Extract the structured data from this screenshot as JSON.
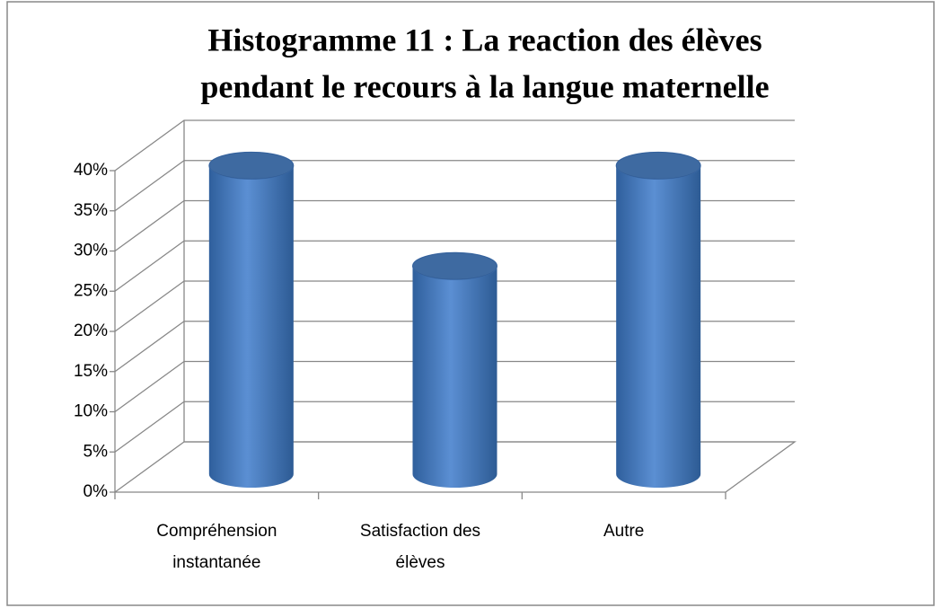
{
  "chart_data": {
    "type": "bar",
    "title": [
      "Histogramme 11 : La reaction des élèves",
      "pendant le recours à la langue maternelle"
    ],
    "categories": [
      [
        "Compréhension",
        "instantanée"
      ],
      [
        "Satisfaction des",
        "élèves"
      ],
      [
        "Autre"
      ]
    ],
    "values": [
      37.5,
      25,
      37.5
    ],
    "color": "#4f81bd",
    "ylim": [
      0,
      40
    ],
    "yticks": [
      {
        "value": 0,
        "label": "0%"
      },
      {
        "value": 5,
        "label": "5%"
      },
      {
        "value": 10,
        "label": "10%"
      },
      {
        "value": 15,
        "label": "15%"
      },
      {
        "value": 20,
        "label": "20%"
      },
      {
        "value": 25,
        "label": "25%"
      },
      {
        "value": 30,
        "label": "30%"
      },
      {
        "value": 35,
        "label": "35%"
      },
      {
        "value": 40,
        "label": "40%"
      }
    ],
    "grid": true
  }
}
